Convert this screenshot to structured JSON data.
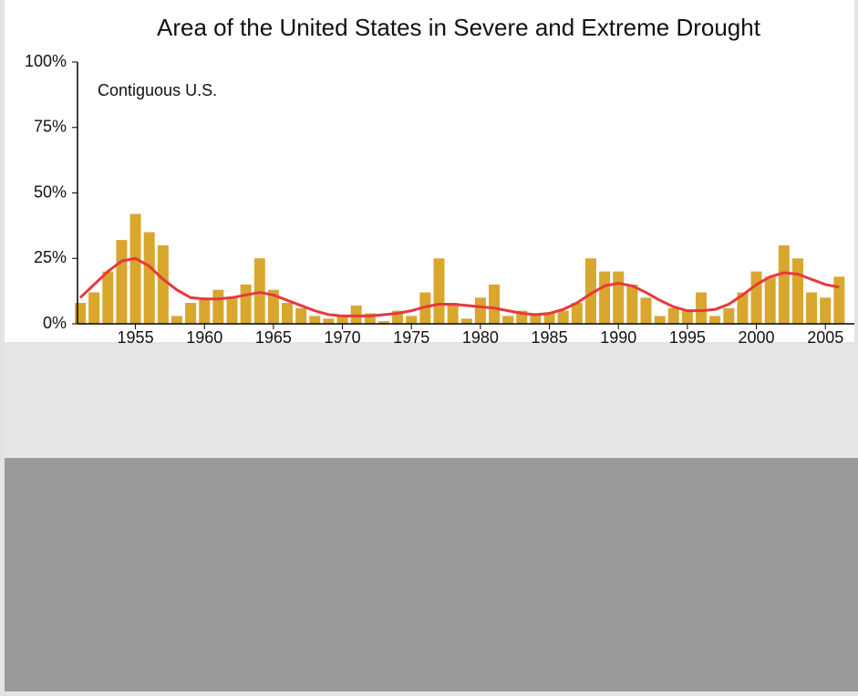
{
  "chart_data": {
    "type": "bar-line",
    "title": "Area of the United States in Severe and Extreme Drought",
    "annotation": "Contiguous U.S.",
    "x": [
      1951,
      1952,
      1953,
      1954,
      1955,
      1956,
      1957,
      1958,
      1959,
      1960,
      1961,
      1962,
      1963,
      1964,
      1965,
      1966,
      1967,
      1968,
      1969,
      1970,
      1971,
      1972,
      1973,
      1974,
      1975,
      1976,
      1977,
      1978,
      1979,
      1980,
      1981,
      1982,
      1983,
      1984,
      1985,
      1986,
      1987,
      1988,
      1989,
      1990,
      1991,
      1992,
      1993,
      1994,
      1995,
      1996,
      1997,
      1998,
      1999,
      2000,
      2001,
      2002,
      2003,
      2004,
      2005,
      2006
    ],
    "series": [
      {
        "kind": "bar",
        "color": "#d9a62e",
        "values": [
          8,
          12,
          20,
          32,
          42,
          35,
          30,
          3,
          8,
          10,
          13,
          10,
          15,
          25,
          13,
          8,
          6,
          3,
          2,
          3,
          7,
          4,
          1,
          5,
          3,
          12,
          25,
          8,
          2,
          10,
          15,
          3,
          5,
          4,
          4,
          5,
          8,
          25,
          20,
          20,
          15,
          10,
          3,
          6,
          5,
          12,
          3,
          6,
          12,
          20,
          18,
          30,
          25,
          12,
          10,
          18
        ]
      },
      {
        "kind": "line",
        "color": "#e8383d",
        "values": [
          10,
          15,
          20,
          24,
          25,
          22,
          17,
          13,
          10,
          9.5,
          9.5,
          10,
          11,
          12,
          11,
          9,
          7,
          5,
          3.5,
          3,
          3,
          3,
          3.5,
          4,
          5,
          6.5,
          7.5,
          7.5,
          7,
          6.5,
          6,
          5,
          4,
          3.5,
          4,
          5.5,
          8,
          11.5,
          14.5,
          15.5,
          14.5,
          12,
          9,
          6.5,
          5,
          5,
          5.5,
          7.5,
          11,
          15,
          18,
          19.5,
          19,
          17,
          15,
          14
        ]
      }
    ],
    "xlim": [
      1950.8,
      2007.1
    ],
    "xticks": [
      1955,
      1960,
      1965,
      1970,
      1975,
      1980,
      1985,
      1990,
      1995,
      2000,
      2005
    ],
    "ylim": [
      0,
      100
    ],
    "yticks": [
      {
        "value": 0,
        "label": "0%"
      },
      {
        "value": 25,
        "label": "25%"
      },
      {
        "value": 50,
        "label": "50%"
      },
      {
        "value": 75,
        "label": "75%"
      },
      {
        "value": 100,
        "label": "100%"
      }
    ]
  }
}
